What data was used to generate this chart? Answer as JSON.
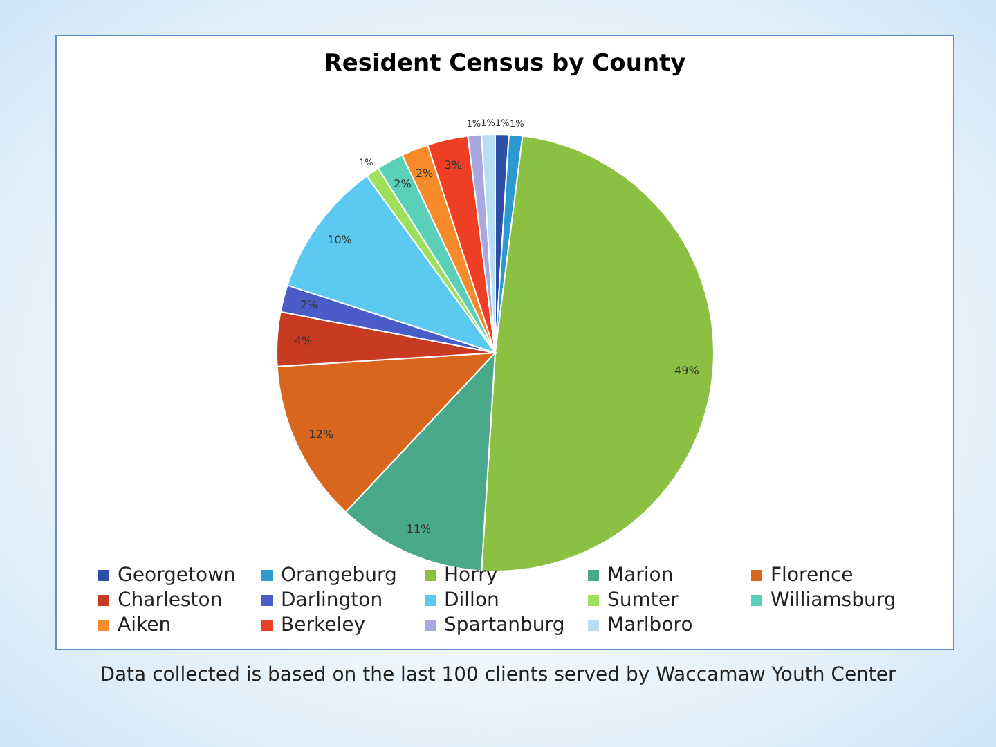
{
  "chart_data": {
    "type": "pie",
    "title": "Resident Census by County",
    "categories": [
      "Georgetown",
      "Orangeburg",
      "Horry",
      "Marion",
      "Florence",
      "Charleston",
      "Darlington",
      "Dillon",
      "Sumter",
      "Williamsburg",
      "Aiken",
      "Berkeley",
      "Spartanburg",
      "Marlboro"
    ],
    "values": [
      1,
      1,
      49,
      11,
      12,
      4,
      2,
      10,
      1,
      2,
      2,
      3,
      1,
      1
    ],
    "value_labels": [
      "1%",
      "1%",
      "49%",
      "11%",
      "12%",
      "4%",
      "2%",
      "10%",
      "1%",
      "2%",
      "2%",
      "3%",
      "1%",
      "1%"
    ],
    "colors": [
      "#2e4fa8",
      "#2b9ad0",
      "#8cc043",
      "#49a98a",
      "#d8661c",
      "#c83a22",
      "#4a5cc8",
      "#5ccaf0",
      "#9ee05a",
      "#5ad0b8",
      "#f78a2a",
      "#ee3e24",
      "#a8a8e0",
      "#b8def4"
    ],
    "legend": "bottom",
    "annotations": [
      "Data collected is based on the last 100 clients served by Waccamaw Youth Center"
    ]
  }
}
